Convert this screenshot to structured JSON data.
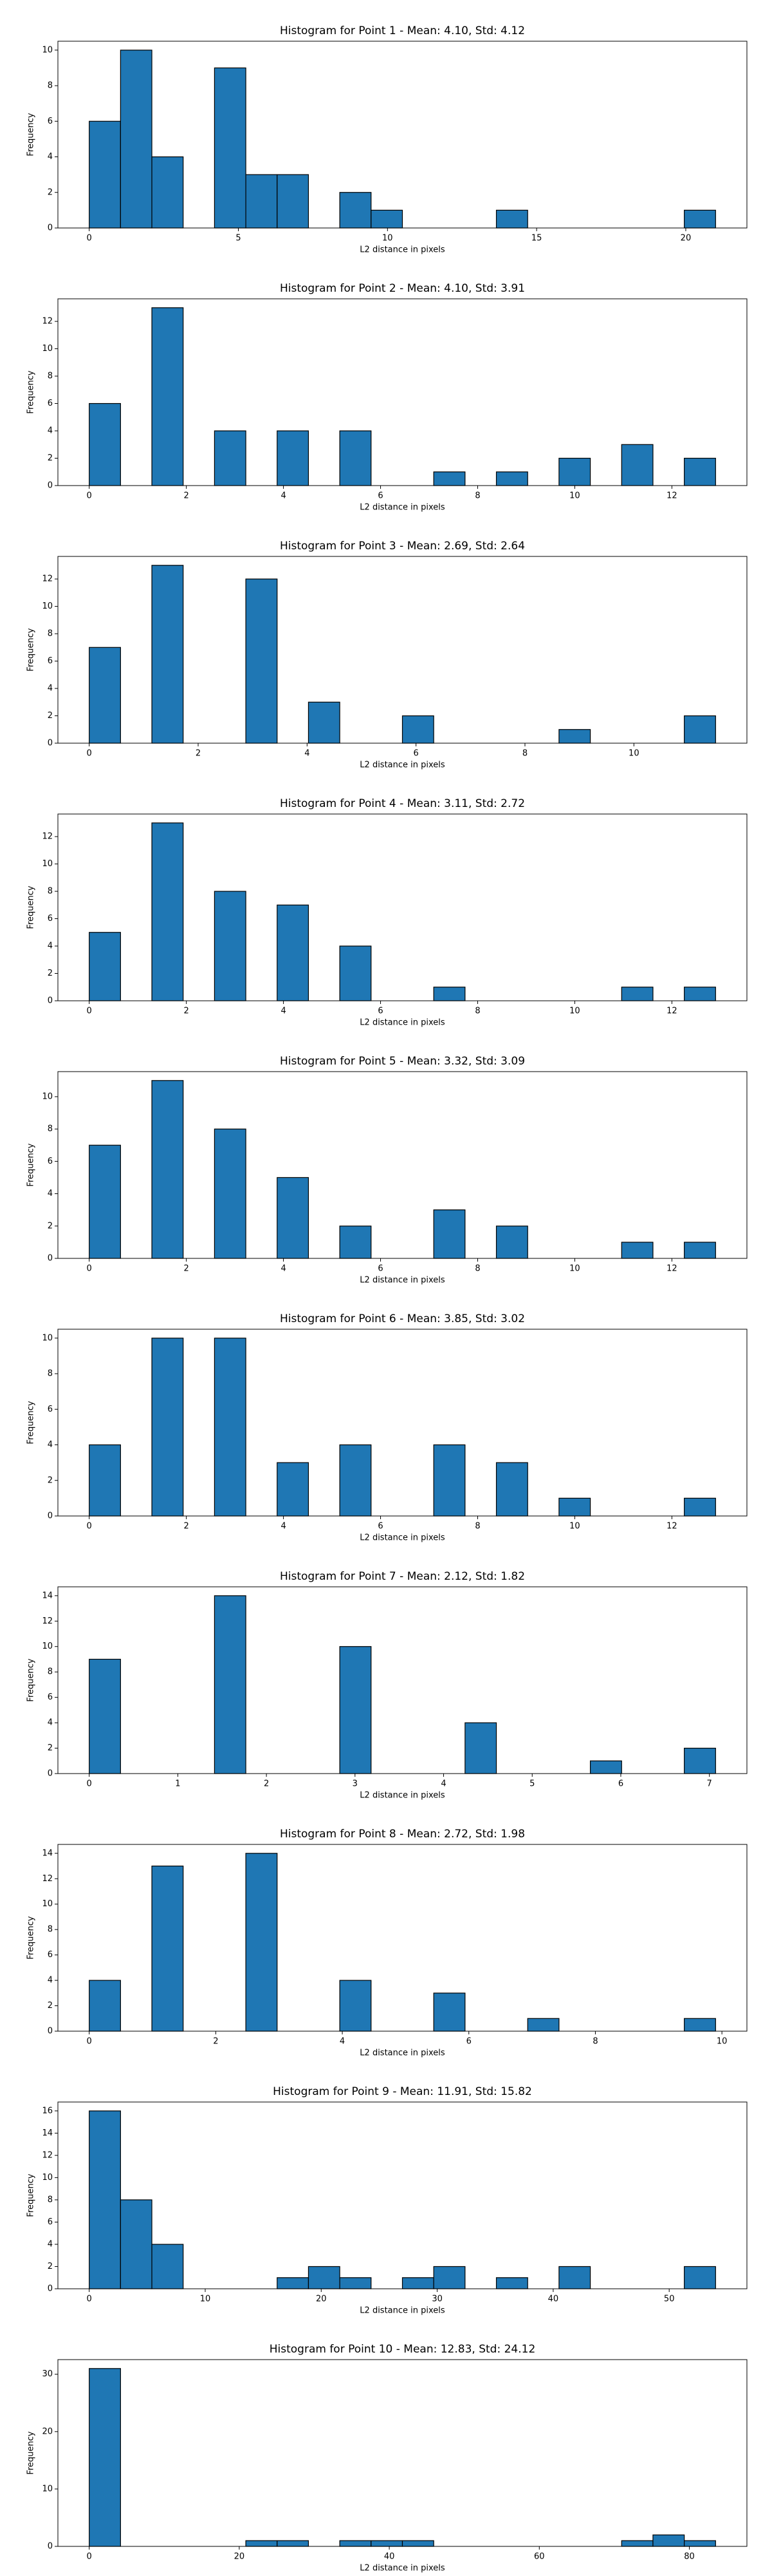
{
  "chart_data": [
    {
      "type": "histogram",
      "title": "Histogram for Point 1 - Mean: 4.10, Std: 4.12",
      "xlabel": "L2 distance in pixels",
      "ylabel": "Frequency",
      "color": "#1f77b4",
      "edgecolor": "#000000",
      "bins": [
        0,
        1.05,
        2.1,
        3.15,
        4.2,
        5.25,
        6.3,
        7.35,
        8.4,
        9.45,
        10.5,
        11.55,
        12.6,
        13.65,
        14.7,
        15.75,
        16.8,
        17.85,
        18.9,
        19.95,
        21
      ],
      "values": [
        6,
        10,
        4,
        0,
        9,
        3,
        3,
        0,
        2,
        1,
        0,
        0,
        0,
        1,
        0,
        0,
        0,
        0,
        0,
        1
      ],
      "xlim": [
        -1.05,
        22.05
      ],
      "ylim": [
        0,
        10.5
      ],
      "xticks": [
        0,
        5,
        10,
        15,
        20
      ],
      "yticks": [
        0,
        2,
        4,
        6,
        8,
        10
      ]
    },
    {
      "type": "histogram",
      "title": "Histogram for Point 2 - Mean: 4.10, Std: 3.91",
      "xlabel": "L2 distance in pixels",
      "ylabel": "Frequency",
      "color": "#1f77b4",
      "edgecolor": "#000000",
      "bins": [
        0,
        0.645,
        1.29,
        1.935,
        2.58,
        3.225,
        3.87,
        4.515,
        5.16,
        5.805,
        6.45,
        7.095,
        7.74,
        8.385,
        9.03,
        9.675,
        10.32,
        10.965,
        11.61,
        12.255,
        12.9
      ],
      "values": [
        6,
        0,
        13,
        0,
        4,
        0,
        4,
        0,
        4,
        0,
        0,
        1,
        0,
        1,
        0,
        2,
        0,
        3,
        0,
        2
      ],
      "xlim": [
        -0.645,
        13.545
      ],
      "ylim": [
        0,
        13.65
      ],
      "xticks": [
        0,
        2,
        4,
        6,
        8,
        10,
        12
      ],
      "yticks": [
        0,
        2,
        4,
        6,
        8,
        10,
        12
      ]
    },
    {
      "type": "histogram",
      "title": "Histogram for Point 3 - Mean: 2.69, Std: 2.64",
      "xlabel": "L2 distance in pixels",
      "ylabel": "Frequency",
      "color": "#1f77b4",
      "edgecolor": "#000000",
      "bins": [
        0,
        0.575,
        1.15,
        1.725,
        2.3,
        2.875,
        3.45,
        4.025,
        4.6,
        5.175,
        5.75,
        6.325,
        6.9,
        7.475,
        8.05,
        8.625,
        9.2,
        9.775,
        10.35,
        10.925,
        11.5
      ],
      "values": [
        7,
        0,
        13,
        0,
        0,
        12,
        0,
        3,
        0,
        0,
        2,
        0,
        0,
        0,
        0,
        1,
        0,
        0,
        0,
        2
      ],
      "xlim": [
        -0.575,
        12.075
      ],
      "ylim": [
        0,
        13.65
      ],
      "xticks": [
        0,
        2,
        4,
        6,
        8,
        10
      ],
      "yticks": [
        0,
        2,
        4,
        6,
        8,
        10,
        12
      ]
    },
    {
      "type": "histogram",
      "title": "Histogram for Point 4 - Mean: 3.11, Std: 2.72",
      "xlabel": "L2 distance in pixels",
      "ylabel": "Frequency",
      "color": "#1f77b4",
      "edgecolor": "#000000",
      "bins": [
        0,
        0.645,
        1.29,
        1.935,
        2.58,
        3.225,
        3.87,
        4.515,
        5.16,
        5.805,
        6.45,
        7.095,
        7.74,
        8.385,
        9.03,
        9.675,
        10.32,
        10.965,
        11.61,
        12.255,
        12.9
      ],
      "values": [
        5,
        0,
        13,
        0,
        8,
        0,
        7,
        0,
        4,
        0,
        0,
        1,
        0,
        0,
        0,
        0,
        0,
        1,
        0,
        1
      ],
      "xlim": [
        -0.645,
        13.545
      ],
      "ylim": [
        0,
        13.65
      ],
      "xticks": [
        0,
        2,
        4,
        6,
        8,
        10,
        12
      ],
      "yticks": [
        0,
        2,
        4,
        6,
        8,
        10,
        12
      ]
    },
    {
      "type": "histogram",
      "title": "Histogram for Point 5 - Mean: 3.32, Std: 3.09",
      "xlabel": "L2 distance in pixels",
      "ylabel": "Frequency",
      "color": "#1f77b4",
      "edgecolor": "#000000",
      "bins": [
        0,
        0.645,
        1.29,
        1.935,
        2.58,
        3.225,
        3.87,
        4.515,
        5.16,
        5.805,
        6.45,
        7.095,
        7.74,
        8.385,
        9.03,
        9.675,
        10.32,
        10.965,
        11.61,
        12.255,
        12.9
      ],
      "values": [
        7,
        0,
        11,
        0,
        8,
        0,
        5,
        0,
        2,
        0,
        0,
        3,
        0,
        2,
        0,
        0,
        0,
        1,
        0,
        1
      ],
      "xlim": [
        -0.645,
        13.545
      ],
      "ylim": [
        0,
        11.55
      ],
      "xticks": [
        0,
        2,
        4,
        6,
        8,
        10,
        12
      ],
      "yticks": [
        0,
        2,
        4,
        6,
        8,
        10
      ]
    },
    {
      "type": "histogram",
      "title": "Histogram for Point 6 - Mean: 3.85, Std: 3.02",
      "xlabel": "L2 distance in pixels",
      "ylabel": "Frequency",
      "color": "#1f77b4",
      "edgecolor": "#000000",
      "bins": [
        0,
        0.645,
        1.29,
        1.935,
        2.58,
        3.225,
        3.87,
        4.515,
        5.16,
        5.805,
        6.45,
        7.095,
        7.74,
        8.385,
        9.03,
        9.675,
        10.32,
        10.965,
        11.61,
        12.255,
        12.9
      ],
      "values": [
        4,
        0,
        10,
        0,
        10,
        0,
        3,
        0,
        4,
        0,
        0,
        4,
        0,
        3,
        0,
        1,
        0,
        0,
        0,
        1
      ],
      "xlim": [
        -0.645,
        13.545
      ],
      "ylim": [
        0,
        10.5
      ],
      "xticks": [
        0,
        2,
        4,
        6,
        8,
        10,
        12
      ],
      "yticks": [
        0,
        2,
        4,
        6,
        8,
        10
      ]
    },
    {
      "type": "histogram",
      "title": "Histogram for Point 7 - Mean: 2.12, Std: 1.82",
      "xlabel": "L2 distance in pixels",
      "ylabel": "Frequency",
      "color": "#1f77b4",
      "edgecolor": "#000000",
      "bins": [
        0,
        0.3535,
        0.707,
        1.0605,
        1.414,
        1.7675,
        2.121,
        2.4745,
        2.828,
        3.1815,
        3.535,
        3.8885,
        4.242,
        4.5955,
        4.949,
        5.3025,
        5.656,
        6.0095,
        6.363,
        6.7165,
        7.07
      ],
      "values": [
        9,
        0,
        0,
        0,
        14,
        0,
        0,
        0,
        10,
        0,
        0,
        0,
        4,
        0,
        0,
        0,
        1,
        0,
        0,
        2
      ],
      "xlim": [
        -0.3535,
        7.4235
      ],
      "ylim": [
        0,
        14.7
      ],
      "xticks": [
        0,
        1,
        2,
        3,
        4,
        5,
        6,
        7
      ],
      "yticks": [
        0,
        2,
        4,
        6,
        8,
        10,
        12,
        14
      ]
    },
    {
      "type": "histogram",
      "title": "Histogram for Point 8 - Mean: 2.72, Std: 1.98",
      "xlabel": "L2 distance in pixels",
      "ylabel": "Frequency",
      "color": "#1f77b4",
      "edgecolor": "#000000",
      "bins": [
        0,
        0.495,
        0.99,
        1.485,
        1.98,
        2.475,
        2.97,
        3.465,
        3.96,
        4.455,
        4.95,
        5.445,
        5.94,
        6.435,
        6.93,
        7.425,
        7.92,
        8.415,
        8.91,
        9.405,
        9.9
      ],
      "values": [
        4,
        0,
        13,
        0,
        0,
        14,
        0,
        0,
        4,
        0,
        0,
        3,
        0,
        0,
        1,
        0,
        0,
        0,
        0,
        1
      ],
      "xlim": [
        -0.495,
        10.395
      ],
      "ylim": [
        0,
        14.7
      ],
      "xticks": [
        0,
        2,
        4,
        6,
        8,
        10
      ],
      "yticks": [
        0,
        2,
        4,
        6,
        8,
        10,
        12,
        14
      ]
    },
    {
      "type": "histogram",
      "title": "Histogram for Point 9 - Mean: 11.91, Std: 15.82",
      "xlabel": "L2 distance in pixels",
      "ylabel": "Frequency",
      "color": "#1f77b4",
      "edgecolor": "#000000",
      "bins": [
        0,
        2.7,
        5.4,
        8.1,
        10.8,
        13.5,
        16.2,
        18.9,
        21.6,
        24.3,
        27,
        29.7,
        32.4,
        35.1,
        37.8,
        40.5,
        43.2,
        45.9,
        48.6,
        51.3,
        54
      ],
      "values": [
        16,
        8,
        4,
        0,
        0,
        0,
        1,
        2,
        1,
        0,
        1,
        2,
        0,
        1,
        0,
        2,
        0,
        0,
        0,
        2
      ],
      "xlim": [
        -2.7,
        56.7
      ],
      "ylim": [
        0,
        16.8
      ],
      "xticks": [
        0,
        10,
        20,
        30,
        40,
        50
      ],
      "yticks": [
        0,
        2,
        4,
        6,
        8,
        10,
        12,
        14,
        16
      ]
    },
    {
      "type": "histogram",
      "title": "Histogram for Point 10 - Mean: 12.83, Std: 24.12",
      "xlabel": "L2 distance in pixels",
      "ylabel": "Frequency",
      "color": "#1f77b4",
      "edgecolor": "#000000",
      "bins": [
        0,
        4.175,
        8.35,
        12.525,
        16.7,
        20.875,
        25.05,
        29.225,
        33.4,
        37.575,
        41.75,
        45.925,
        50.1,
        54.275,
        58.45,
        62.625,
        66.8,
        70.975,
        75.15,
        79.325,
        83.5
      ],
      "values": [
        31,
        0,
        0,
        0,
        0,
        1,
        1,
        0,
        1,
        1,
        1,
        0,
        0,
        0,
        0,
        0,
        0,
        1,
        2,
        1
      ],
      "xlim": [
        -4.175,
        87.675
      ],
      "ylim": [
        0,
        32.55
      ],
      "xticks": [
        0,
        20,
        40,
        60,
        80
      ],
      "yticks": [
        0,
        10,
        20,
        30
      ]
    }
  ]
}
